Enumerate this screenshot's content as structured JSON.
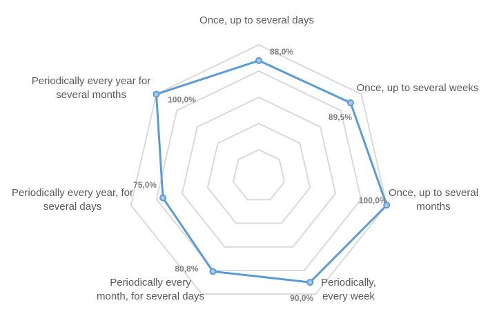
{
  "chart_data": {
    "type": "radar",
    "categories": [
      "Once, up to several days",
      "Once, up to several weeks",
      "Once, up to several months",
      "Periodically, every week",
      "Periodically every month, for several days",
      "Periodically every year, for several days",
      "Periodically every year for several months"
    ],
    "values": [
      88.0,
      89.5,
      100.0,
      90.0,
      80.8,
      75.0,
      100.0
    ],
    "value_labels": [
      "88,0%",
      "89,5%",
      "100,0%",
      "90,0%",
      "80,8%",
      "75,0%",
      "100,0%"
    ],
    "color": "#5b9bd5",
    "ylim": [
      0,
      100
    ],
    "yticks": [
      0,
      20,
      40,
      60,
      80,
      100
    ],
    "grid": true
  }
}
